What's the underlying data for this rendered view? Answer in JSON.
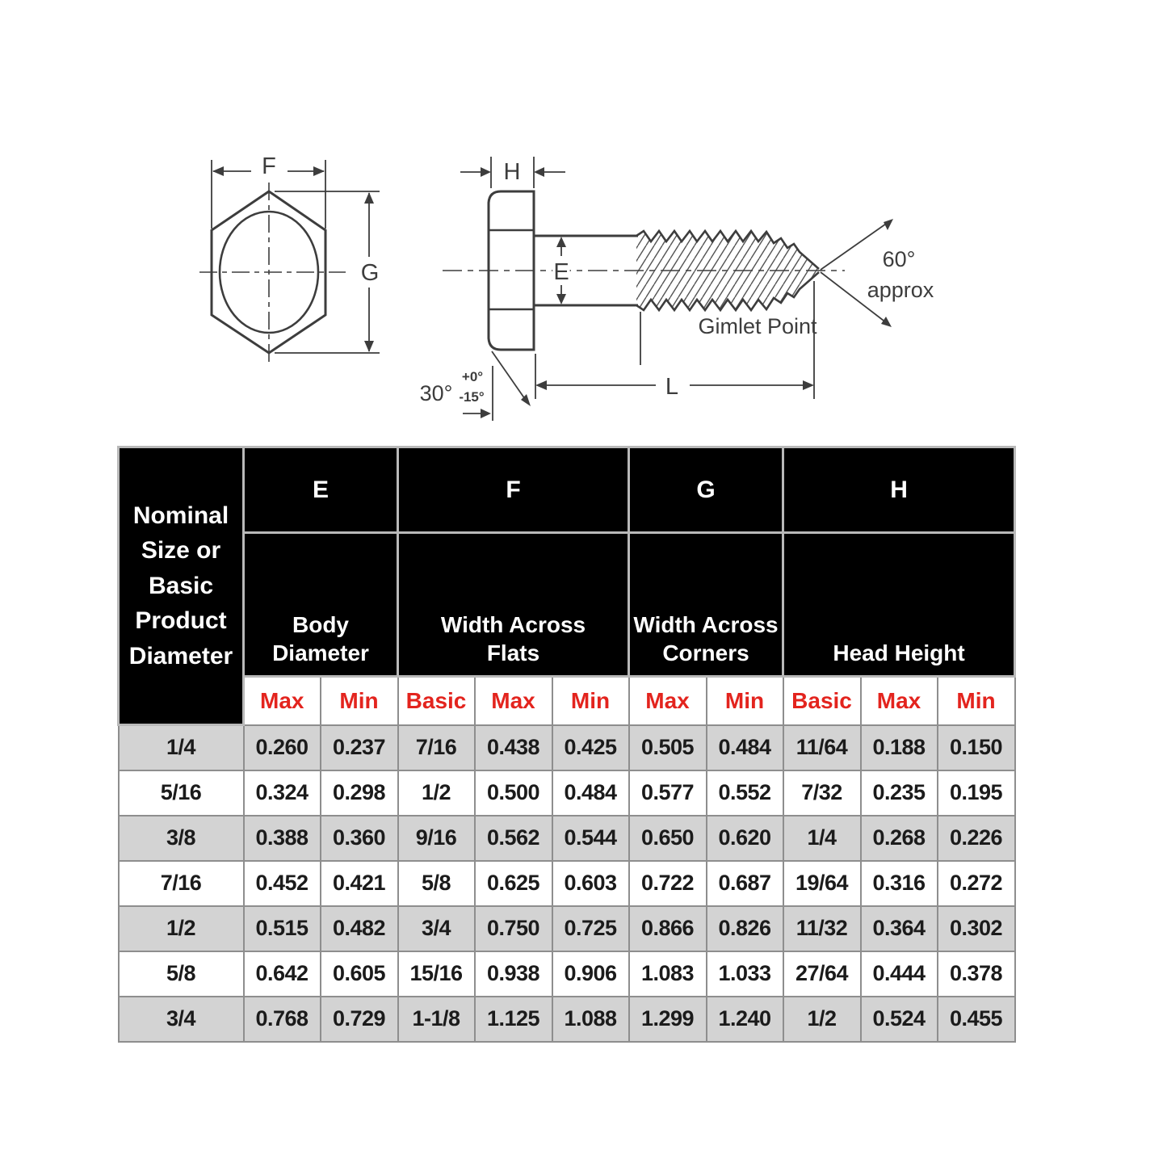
{
  "diagram": {
    "front_view": {
      "f_label": "F",
      "g_label": "G"
    },
    "side_view": {
      "h_label": "H",
      "e_label": "E",
      "l_label": "L",
      "chamfer_angle": "30°",
      "chamfer_tol_plus": "+0°",
      "chamfer_tol_minus": "-15°",
      "point_angle": "60°",
      "point_angle_note": "approx",
      "point_name": "Gimlet Point"
    }
  },
  "table": {
    "corner_header": "Nominal Size or Basic Product Diameter",
    "groups": [
      {
        "letter": "E",
        "label": "Body Diameter",
        "span": 2
      },
      {
        "letter": "F",
        "label": "Width Across Flats",
        "span": 3
      },
      {
        "letter": "G",
        "label": "Width Across Corners",
        "span": 2
      },
      {
        "letter": "H",
        "label": "Head Height",
        "span": 3
      }
    ],
    "sub_headers": [
      "Max",
      "Min",
      "Basic",
      "Max",
      "Min",
      "Max",
      "Min",
      "Basic",
      "Max",
      "Min"
    ],
    "rows": [
      {
        "size": "1/4",
        "values": [
          "0.260",
          "0.237",
          "7/16",
          "0.438",
          "0.425",
          "0.505",
          "0.484",
          "11/64",
          "0.188",
          "0.150"
        ]
      },
      {
        "size": "5/16",
        "values": [
          "0.324",
          "0.298",
          "1/2",
          "0.500",
          "0.484",
          "0.577",
          "0.552",
          "7/32",
          "0.235",
          "0.195"
        ]
      },
      {
        "size": "3/8",
        "values": [
          "0.388",
          "0.360",
          "9/16",
          "0.562",
          "0.544",
          "0.650",
          "0.620",
          "1/4",
          "0.268",
          "0.226"
        ]
      },
      {
        "size": "7/16",
        "values": [
          "0.452",
          "0.421",
          "5/8",
          "0.625",
          "0.603",
          "0.722",
          "0.687",
          "19/64",
          "0.316",
          "0.272"
        ]
      },
      {
        "size": "1/2",
        "values": [
          "0.515",
          "0.482",
          "3/4",
          "0.750",
          "0.725",
          "0.866",
          "0.826",
          "11/32",
          "0.364",
          "0.302"
        ]
      },
      {
        "size": "5/8",
        "values": [
          "0.642",
          "0.605",
          "15/16",
          "0.938",
          "0.906",
          "1.083",
          "1.033",
          "27/64",
          "0.444",
          "0.378"
        ]
      },
      {
        "size": "3/4",
        "values": [
          "0.768",
          "0.729",
          "1-1/8",
          "1.125",
          "1.088",
          "1.299",
          "1.240",
          "1/2",
          "0.524",
          "0.455"
        ]
      }
    ]
  },
  "colors": {
    "header_bg": "#000000",
    "header_text": "#ffffff",
    "subheader_text": "#e3241e",
    "row_alt_bg": "#d3d3d3",
    "row_bg": "#ffffff",
    "grid_line": "#8e8e8e",
    "drawing_line": "#3d3d3d"
  }
}
